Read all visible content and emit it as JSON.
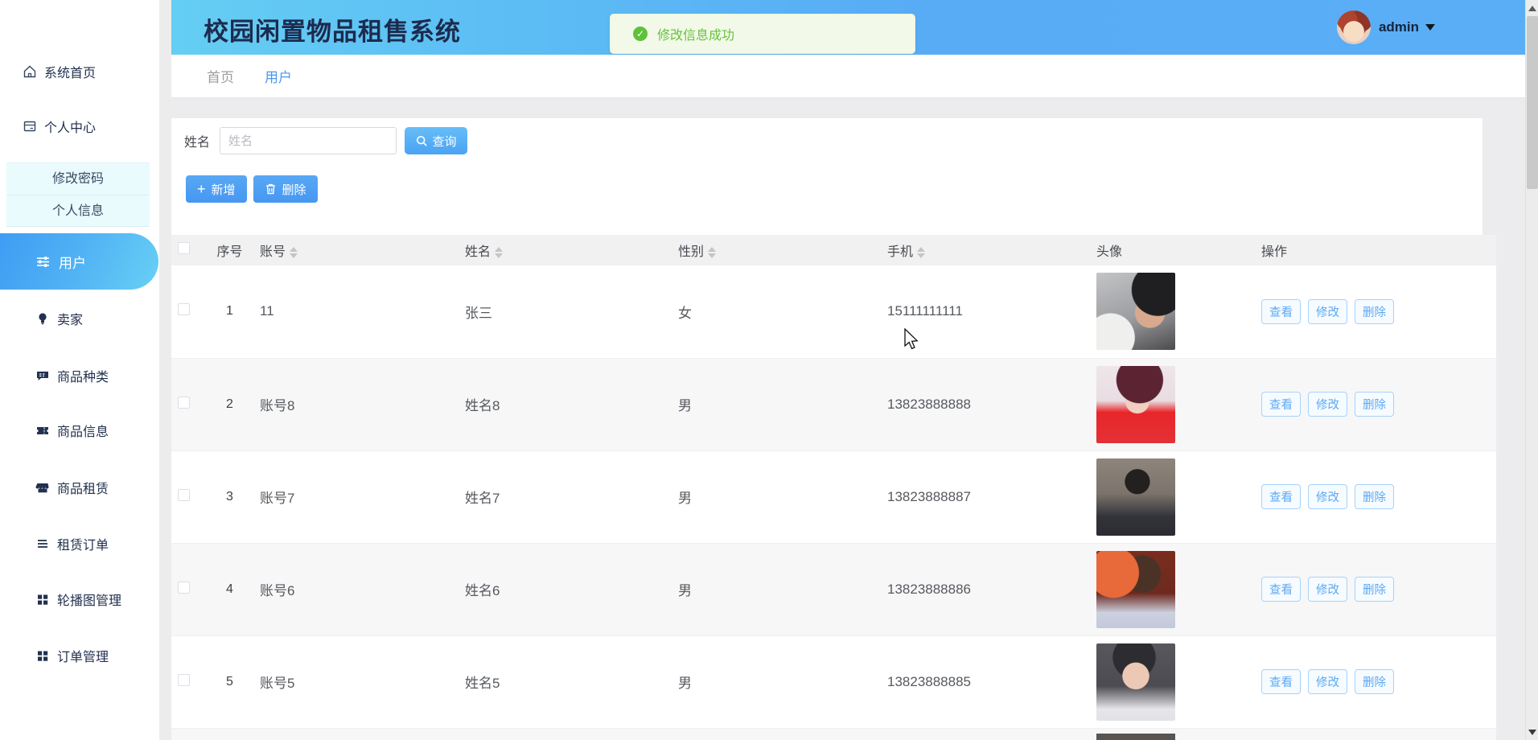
{
  "app": {
    "title": "校园闲置物品租售系统"
  },
  "header": {
    "toast": {
      "message": "修改信息成功"
    },
    "user": {
      "name": "admin"
    }
  },
  "colors": {
    "accent_blue": "#4a9ff2",
    "header_cyan": "#65cef3",
    "success_green": "#67c23a",
    "active_item_gradient_start": "#3e9df3",
    "active_item_gradient_end": "#67d0f5"
  },
  "sidebar": {
    "items": [
      {
        "label": "系统首页",
        "icon": "home-icon"
      },
      {
        "label": "个人中心",
        "icon": "profile-panel-icon"
      },
      {
        "label": "修改密码"
      },
      {
        "label": "个人信息"
      },
      {
        "label": "用户",
        "icon": "sliders-icon",
        "active": true
      },
      {
        "label": "卖家",
        "icon": "bulb-icon"
      },
      {
        "label": "商品种类",
        "icon": "chat-icon"
      },
      {
        "label": "商品信息",
        "icon": "ticket-icon"
      },
      {
        "label": "商品租赁",
        "icon": "shop-icon"
      },
      {
        "label": "租赁订单",
        "icon": "list-icon"
      },
      {
        "label": "轮播图管理",
        "icon": "grid-icon"
      },
      {
        "label": "订单管理",
        "icon": "grid-icon"
      }
    ]
  },
  "tabs": [
    {
      "label": "首页",
      "active": false
    },
    {
      "label": "用户",
      "active": true
    }
  ],
  "filters": {
    "name_label": "姓名",
    "name_placeholder": "姓名",
    "query_label": "查询"
  },
  "toolbar": {
    "add_label": "新增",
    "delete_label": "删除"
  },
  "table": {
    "headers": [
      {
        "label": "序号",
        "sortable": false
      },
      {
        "label": "账号",
        "sortable": true
      },
      {
        "label": "姓名",
        "sortable": true
      },
      {
        "label": "性别",
        "sortable": true
      },
      {
        "label": "手机",
        "sortable": true
      },
      {
        "label": "头像",
        "sortable": false
      },
      {
        "label": "操作",
        "sortable": false
      }
    ],
    "action_labels": [
      "查看",
      "修改",
      "删除"
    ],
    "rows": [
      {
        "index": "1",
        "account": "11",
        "name": "张三",
        "gender": "女",
        "phone": "15111111111",
        "avatar": "male-selfie-with-cat-photo"
      },
      {
        "index": "2",
        "account": "账号8",
        "name": "姓名8",
        "gender": "男",
        "phone": "13823888888",
        "avatar": "female-red-dress-photo"
      },
      {
        "index": "3",
        "account": "账号7",
        "name": "姓名7",
        "gender": "男",
        "phone": "13823888887",
        "avatar": "male-brick-wall-photo"
      },
      {
        "index": "4",
        "account": "账号6",
        "name": "姓名6",
        "gender": "男",
        "phone": "13823888886",
        "avatar": "male-warm-light-photo"
      },
      {
        "index": "5",
        "account": "账号5",
        "name": "姓名5",
        "gender": "男",
        "phone": "13823888885",
        "avatar": "female-peace-sign-photo"
      }
    ]
  }
}
